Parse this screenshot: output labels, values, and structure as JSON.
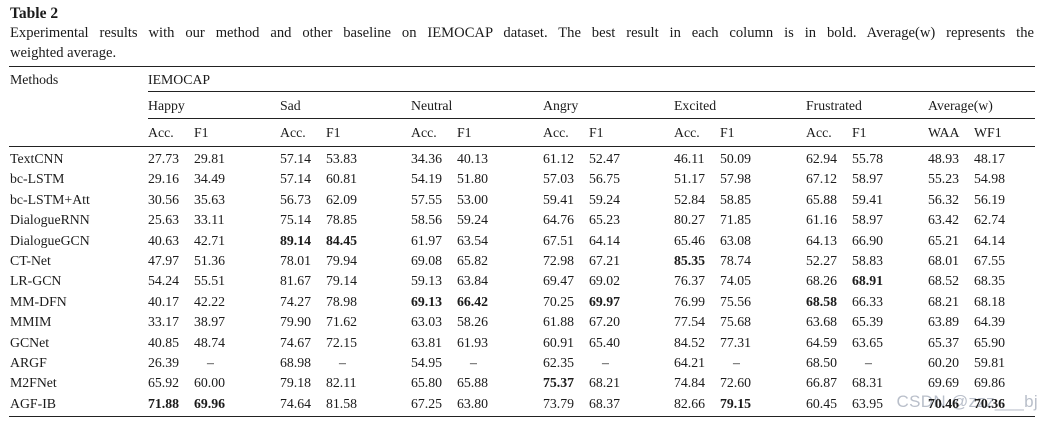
{
  "title": "Table 2",
  "caption_lines": [
    "Experimental results with our method and other baseline on IEMOCAP dataset. The best result in each column is in bold. Average(w) represents the",
    "weighted average."
  ],
  "watermark": "CSDN @zzz___bj",
  "table": {
    "col_methods": "Methods",
    "dataset": "IEMOCAP",
    "groups": [
      "Happy",
      "Sad",
      "Neutral",
      "Angry",
      "Excited",
      "Frustrated",
      "Average(w)"
    ],
    "metrics": [
      [
        "Acc.",
        "F1"
      ],
      [
        "Acc.",
        "F1"
      ],
      [
        "Acc.",
        "F1"
      ],
      [
        "Acc.",
        "F1"
      ],
      [
        "Acc.",
        "F1"
      ],
      [
        "Acc.",
        "F1"
      ],
      [
        "WAA",
        "WF1"
      ]
    ],
    "rows": [
      {
        "method": "TextCNN",
        "values": [
          "27.73",
          "29.81",
          "57.14",
          "53.83",
          "34.36",
          "40.13",
          "61.12",
          "52.47",
          "46.11",
          "50.09",
          "62.94",
          "55.78",
          "48.93",
          "48.17"
        ],
        "bold": []
      },
      {
        "method": "bc-LSTM",
        "values": [
          "29.16",
          "34.49",
          "57.14",
          "60.81",
          "54.19",
          "51.80",
          "57.03",
          "56.75",
          "51.17",
          "57.98",
          "67.12",
          "58.97",
          "55.23",
          "54.98"
        ],
        "bold": []
      },
      {
        "method": "bc-LSTM+Att",
        "values": [
          "30.56",
          "35.63",
          "56.73",
          "62.09",
          "57.55",
          "53.00",
          "59.41",
          "59.24",
          "52.84",
          "58.85",
          "65.88",
          "59.41",
          "56.32",
          "56.19"
        ],
        "bold": []
      },
      {
        "method": "DialogueRNN",
        "values": [
          "25.63",
          "33.11",
          "75.14",
          "78.85",
          "58.56",
          "59.24",
          "64.76",
          "65.23",
          "80.27",
          "71.85",
          "61.16",
          "58.97",
          "63.42",
          "62.74"
        ],
        "bold": []
      },
      {
        "method": "DialogueGCN",
        "values": [
          "40.63",
          "42.71",
          "89.14",
          "84.45",
          "61.97",
          "63.54",
          "67.51",
          "64.14",
          "65.46",
          "63.08",
          "64.13",
          "66.90",
          "65.21",
          "64.14"
        ],
        "bold": [
          2,
          3
        ]
      },
      {
        "method": "CT-Net",
        "values": [
          "47.97",
          "51.36",
          "78.01",
          "79.94",
          "69.08",
          "65.82",
          "72.98",
          "67.21",
          "85.35",
          "78.74",
          "52.27",
          "58.83",
          "68.01",
          "67.55"
        ],
        "bold": [
          8
        ]
      },
      {
        "method": "LR-GCN",
        "values": [
          "54.24",
          "55.51",
          "81.67",
          "79.14",
          "59.13",
          "63.84",
          "69.47",
          "69.02",
          "76.37",
          "74.05",
          "68.26",
          "68.91",
          "68.52",
          "68.35"
        ],
        "bold": [
          11
        ]
      },
      {
        "method": "MM-DFN",
        "values": [
          "40.17",
          "42.22",
          "74.27",
          "78.98",
          "69.13",
          "66.42",
          "70.25",
          "69.97",
          "76.99",
          "75.56",
          "68.58",
          "66.33",
          "68.21",
          "68.18"
        ],
        "bold": [
          4,
          5,
          7,
          10
        ]
      },
      {
        "method": "MMIM",
        "values": [
          "33.17",
          "38.97",
          "79.90",
          "71.62",
          "63.03",
          "58.26",
          "61.88",
          "67.20",
          "77.54",
          "75.68",
          "63.68",
          "65.39",
          "63.89",
          "64.39"
        ],
        "bold": []
      },
      {
        "method": "GCNet",
        "values": [
          "40.85",
          "48.74",
          "74.67",
          "72.15",
          "63.81",
          "61.93",
          "60.91",
          "65.40",
          "84.52",
          "77.31",
          "64.59",
          "63.65",
          "65.37",
          "65.90"
        ],
        "bold": []
      },
      {
        "method": "ARGF",
        "values": [
          "26.39",
          "–",
          "68.98",
          "–",
          "54.95",
          "–",
          "62.35",
          "–",
          "64.21",
          "–",
          "68.50",
          "–",
          "60.20",
          "59.81"
        ],
        "bold": []
      },
      {
        "method": "M2FNet",
        "values": [
          "65.92",
          "60.00",
          "79.18",
          "82.11",
          "65.80",
          "65.88",
          "75.37",
          "68.21",
          "74.84",
          "72.60",
          "66.87",
          "68.31",
          "69.69",
          "69.86"
        ],
        "bold": [
          6
        ]
      },
      {
        "method": "AGF-IB",
        "values": [
          "71.88",
          "69.96",
          "74.64",
          "81.58",
          "67.25",
          "63.80",
          "73.79",
          "68.37",
          "82.66",
          "79.15",
          "60.45",
          "63.95",
          "70.46",
          "70.36"
        ],
        "bold": [
          0,
          1,
          9,
          12,
          13
        ]
      }
    ]
  }
}
